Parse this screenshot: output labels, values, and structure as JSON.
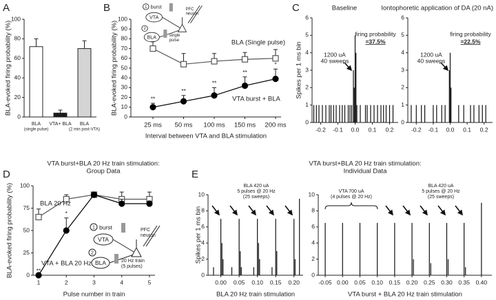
{
  "chart_data": [
    {
      "type": "bar",
      "panel": "A",
      "ylabel": "BLA-evoked firing probability (%)",
      "categories": [
        "BLA",
        "VTA+ BLA",
        "BLA"
      ],
      "category_notes": [
        "(single pulse)",
        null,
        "(2 min post-VTA)"
      ],
      "values": [
        72,
        4,
        70
      ],
      "errors": [
        8,
        3,
        8
      ],
      "colors": [
        "#ffffff",
        "#1a1a1a",
        "#d4d4d4"
      ],
      "ylim": [
        0,
        100
      ],
      "yticks": [
        0,
        20,
        40,
        60,
        80,
        100
      ]
    },
    {
      "type": "line",
      "panel": "B",
      "ylabel": "BLA-evoked firing probability (%)",
      "xlabel": "Interval between VTA and BLA stimulation",
      "categories": [
        "25 ms",
        "50 ms",
        "100 ms",
        "150 ms",
        "200 ms"
      ],
      "series": [
        {
          "name": "BLA (Single pulse)",
          "marker": "square",
          "filled": false,
          "color": "#555555",
          "values": [
            70,
            54,
            57,
            59,
            60
          ],
          "errors": [
            7,
            11,
            8,
            7,
            9
          ]
        },
        {
          "name": "VTA burst + BLA",
          "marker": "circle",
          "filled": true,
          "color": "#000000",
          "values": [
            10,
            16,
            22,
            32,
            39
          ],
          "errors": [
            4,
            6,
            8,
            9,
            10
          ],
          "annotations": [
            "**",
            "**",
            "**",
            "**",
            "*"
          ]
        }
      ],
      "ylim": [
        0,
        100
      ],
      "yticks": [
        0,
        10,
        20,
        30,
        40,
        50,
        60,
        70,
        80,
        90,
        100
      ],
      "inset": {
        "step1": "1",
        "stim1": "burst",
        "source1": "VTA",
        "target": [
          "PFC",
          "neuron"
        ],
        "step2": "2",
        "source2": "BLA",
        "stim2": [
          "single",
          "pulse"
        ]
      }
    },
    {
      "type": "bar",
      "panel": "C",
      "title": "Baseline",
      "ylabel": "Spikes per 1 ms bin",
      "x": [
        -0.24,
        -0.225,
        -0.21,
        -0.19,
        -0.17,
        -0.15,
        -0.14,
        -0.125,
        -0.11,
        -0.09,
        -0.075,
        -0.06,
        -0.04,
        -0.03,
        -0.02,
        -0.01,
        -0.005,
        0.0,
        0.005,
        0.01,
        0.03,
        0.06,
        0.07,
        0.09,
        0.11,
        0.13,
        0.15,
        0.165,
        0.18,
        0.2,
        0.22
      ],
      "values": [
        1,
        1,
        1,
        1,
        1,
        1,
        1,
        1,
        1,
        1,
        1,
        1,
        1,
        1,
        1,
        3,
        2,
        5,
        4,
        1,
        1,
        1,
        1,
        1,
        1,
        1,
        1,
        1,
        1,
        1,
        1
      ],
      "xlim": [
        -0.25,
        0.25
      ],
      "xticks": [
        -0.2,
        -0.1,
        {
          "value": 0,
          "label": "0.0"
        },
        0.1,
        0.2
      ],
      "ylim": [
        0,
        6
      ],
      "yticks": [
        0,
        1,
        2,
        3,
        4,
        5,
        6
      ],
      "probability_label": "firing probability",
      "probability": "=37.5%",
      "stimulus": [
        "1200 uA",
        "40 sweeps"
      ]
    },
    {
      "type": "bar",
      "title": "Iontophoretic application of DA (20 nA)",
      "x": [
        -0.23,
        -0.2,
        -0.17,
        -0.15,
        -0.1,
        -0.08,
        -0.05,
        -0.03,
        -0.005,
        0.0,
        0.005,
        0.05,
        0.08,
        0.12,
        0.14,
        0.17,
        0.19,
        0.21
      ],
      "values": [
        1,
        1,
        1,
        1,
        1,
        1,
        1,
        1,
        3,
        4,
        2,
        1,
        1,
        1,
        1,
        1,
        1,
        1
      ],
      "xlim": [
        -0.25,
        0.25
      ],
      "xticks": [
        -0.2,
        -0.1,
        {
          "value": 0,
          "label": "0.0"
        },
        0.1,
        0.2
      ],
      "ylim": [
        0,
        6
      ],
      "yticks": [
        0,
        1,
        2,
        3,
        4,
        5,
        6
      ],
      "probability_label": "firing probability",
      "probability": "=22.5%",
      "stimulus": [
        "1200 uA",
        "40 sweeps"
      ]
    },
    {
      "type": "line",
      "panel": "D",
      "title": "VTA burst+BLA 20 Hz train stimulation:",
      "subtitle": "Group Data",
      "ylabel": "BLA-evoked firing probability (%)",
      "xlabel": "Pulse number in train",
      "x": [
        1,
        2,
        3,
        4,
        5
      ],
      "xlim": [
        0.8,
        5.2
      ],
      "xticks": [
        1,
        2,
        3,
        4,
        5
      ],
      "series": [
        {
          "name": "BLA 20 Hz",
          "marker": "square",
          "filled": false,
          "color": "#555555",
          "values": [
            65,
            85,
            90,
            85,
            85
          ],
          "errors": [
            9,
            5,
            3,
            8,
            8
          ]
        },
        {
          "name": "VTA + BLA 20 Hz",
          "marker": "circle",
          "filled": true,
          "color": "#000000",
          "values": [
            0,
            50,
            90,
            80,
            80
          ],
          "errors": [
            0,
            14,
            3,
            5,
            3
          ],
          "annotations": [
            "**",
            "*",
            null,
            null,
            null
          ]
        }
      ],
      "ylim": [
        0,
        100
      ],
      "yticks": [
        0,
        25,
        50,
        75,
        100
      ],
      "inset": {
        "step1": "1",
        "stim1": "burst",
        "source1": "VTA",
        "target": [
          "PFC",
          "neuron"
        ],
        "step2": "2",
        "source2": "BLA",
        "stim2": [
          "20 Hz train",
          "(5 pulses)"
        ]
      }
    },
    {
      "type": "bar",
      "panel": "E",
      "title": "VTA burst+BLA 20 Hz train stimulation:",
      "subtitle": "Individual Data",
      "ylabel": "Spikes per 1 ms bin",
      "xlabel": "BLA 20 Hz train stimulation",
      "x": [
        -0.02,
        0.0,
        0.003,
        0.006,
        0.03,
        0.05,
        0.053,
        0.056,
        0.09,
        0.1,
        0.103,
        0.106,
        0.14,
        0.15,
        0.153,
        0.2,
        0.203,
        0.215
      ],
      "values": [
        1,
        7,
        4,
        2,
        1,
        7,
        3,
        1,
        1,
        7,
        4,
        2,
        1,
        7,
        3,
        7,
        2,
        9.5
      ],
      "xlim": [
        -0.035,
        0.225
      ],
      "xticks": [
        {
          "value": 0,
          "label": "0.00"
        },
        0.05,
        {
          "value": 0.1,
          "label": "0.10"
        },
        0.15,
        {
          "value": 0.2,
          "label": "0.20"
        }
      ],
      "ylim": [
        0,
        10
      ],
      "yticks": [
        0,
        2,
        4,
        6,
        8,
        10
      ],
      "notes": [
        {
          "lines": [
            "BLA 420 uA",
            "5 pulses @ 20 Hz",
            "(25 sweeps)"
          ]
        }
      ]
    },
    {
      "type": "bar",
      "xlabel": "VTA burst + BLA 20 Hz train stimulation",
      "x": [
        -0.05,
        0.0,
        0.05,
        0.1,
        0.15,
        0.2,
        0.204,
        0.25,
        0.254,
        0.3,
        0.304,
        0.35,
        0.354,
        0.4
      ],
      "values": [
        6.5,
        6.5,
        6.5,
        6.5,
        6.5,
        6.5,
        2,
        6.5,
        1.5,
        6.5,
        2,
        6.5,
        1,
        9
      ],
      "xlim": [
        -0.07,
        0.43
      ],
      "xticks": [
        -0.05,
        {
          "value": 0,
          "label": "0.00"
        },
        0.05,
        {
          "value": 0.1,
          "label": "0.10"
        },
        0.15,
        {
          "value": 0.2,
          "label": "0.20"
        },
        0.25,
        {
          "value": 0.3,
          "label": "0.30"
        },
        0.35,
        {
          "value": 0.4,
          "label": "0.40"
        }
      ],
      "ylim": [
        0,
        10
      ],
      "yticks": [
        0,
        2,
        4,
        6,
        8,
        10
      ],
      "notes": [
        {
          "lines": [
            "VTA 700 uA",
            "(4 pulses @ 20 Hz)"
          ]
        },
        {
          "lines": [
            "BLA 420 uA",
            "5 pulses @ 20 Hz",
            "(25 sweeps)"
          ]
        }
      ]
    }
  ]
}
